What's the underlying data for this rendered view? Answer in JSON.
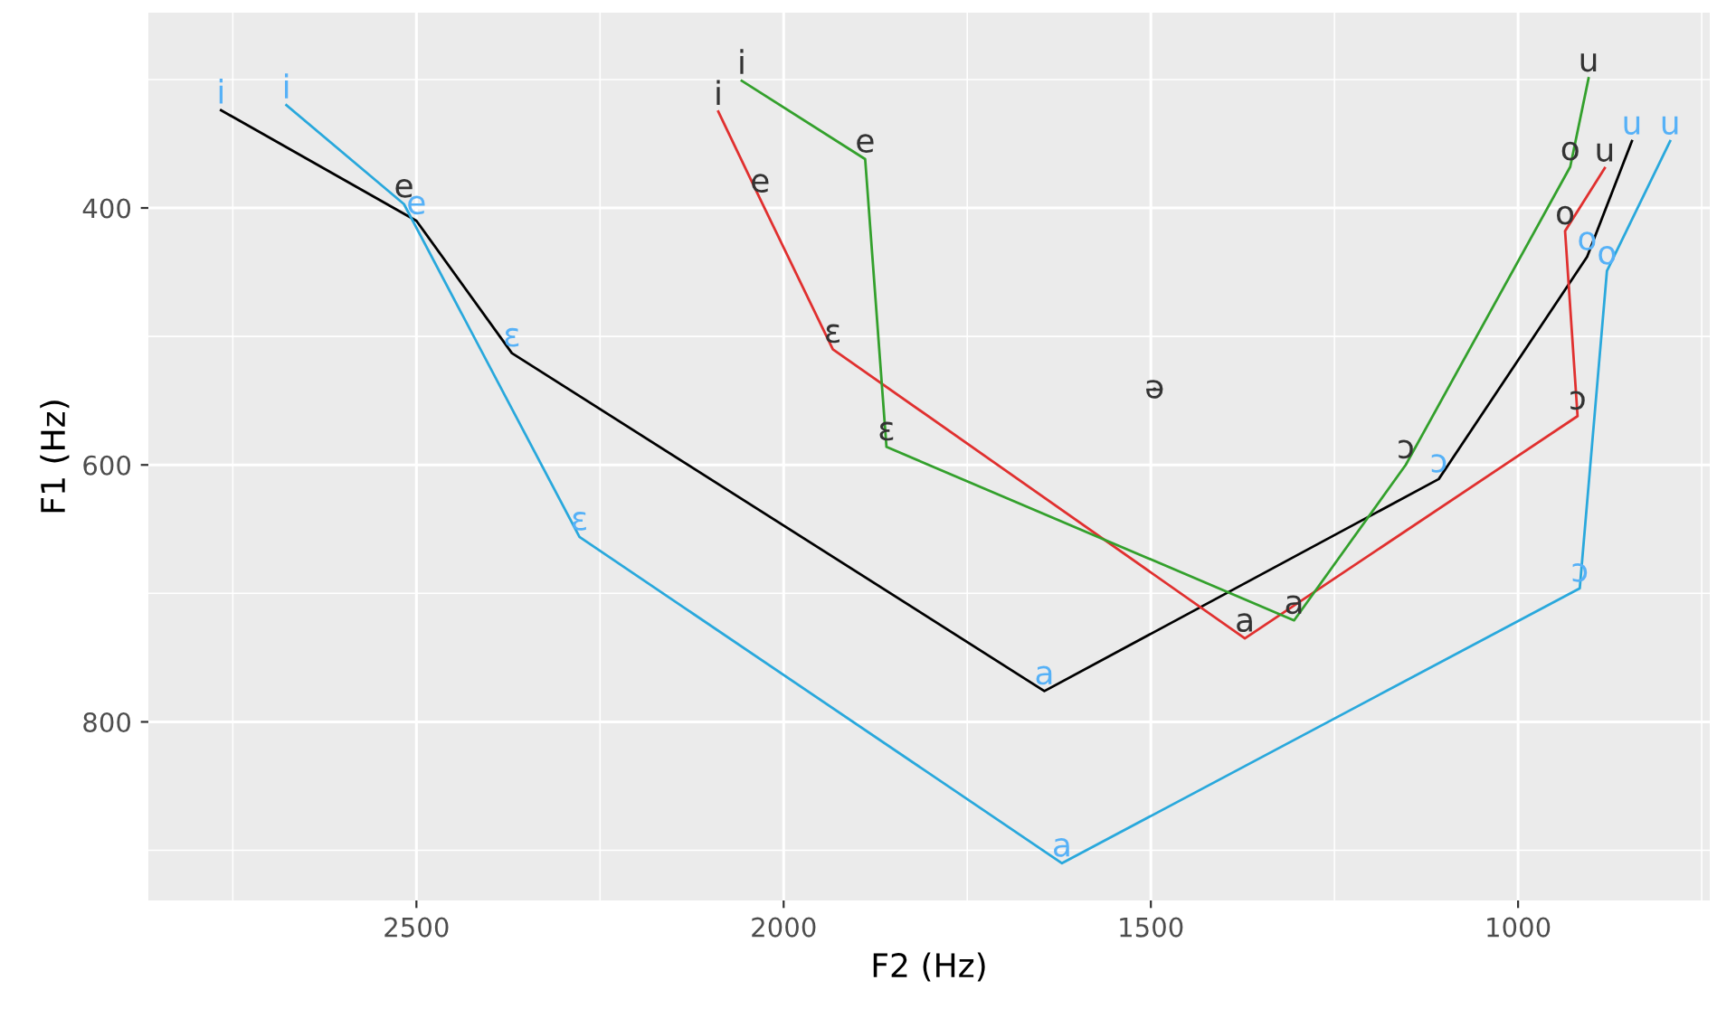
{
  "chart_data": {
    "type": "line",
    "xlabel": "F2 (Hz)",
    "ylabel": "F1 (Hz)",
    "xlim": [
      2865,
      739
    ],
    "ylim": [
      939,
      248
    ],
    "xticks": [
      {
        "value": 2750,
        "label": null
      },
      2500,
      {
        "value": 2250,
        "label": null
      },
      2000,
      {
        "value": 1750,
        "label": null
      },
      1500,
      {
        "value": 1250,
        "label": null
      },
      1000,
      {
        "value": 750,
        "label": null
      }
    ],
    "yticks": [
      {
        "value": 300,
        "label": null
      },
      400,
      {
        "value": 500,
        "label": null
      },
      600,
      {
        "value": 700,
        "label": null
      },
      800,
      {
        "value": 900,
        "label": null
      }
    ],
    "grid": true,
    "marker": "none",
    "series": [
      {
        "color": "#000000",
        "x": [
          2766,
          2500,
          2370,
          1645,
          1108,
          906,
          845
        ],
        "values": [
          324,
          410,
          513,
          776,
          611,
          438,
          348
        ],
        "value_labels": [
          "i",
          "e",
          "ɛ",
          "a",
          "ɔ",
          "o",
          "u"
        ],
        "colors": [
          "#56B1F7",
          "#56B1F7",
          "#56B1F7",
          "#56B1F7",
          "#56B1F7",
          "#56B1F7",
          "#56B1F7"
        ]
      },
      {
        "color": "#29A8DC",
        "x": [
          2677,
          2517,
          2278,
          1621,
          916,
          879,
          793
        ],
        "values": [
          320,
          397,
          656,
          910,
          696,
          449,
          348
        ],
        "value_labels": [
          "i",
          "e",
          "ɛ",
          "a",
          "ɔ",
          "o",
          "u"
        ],
        "colors": [
          "#56B1F7",
          "#333333",
          "#56B1F7",
          "#56B1F7",
          "#56B1F7",
          "#56B1F7",
          "#56B1F7"
        ]
      },
      {
        "color": "#E0302F",
        "x": [
          2089,
          2032,
          1933,
          1372,
          919,
          936,
          882
        ],
        "values": [
          325,
          393,
          510,
          735,
          562,
          418,
          369
        ],
        "value_labels": [
          "i",
          "e",
          "ɛ",
          "a",
          "ɔ",
          "o",
          "u"
        ],
        "colors": [
          "#333333",
          "#333333",
          "#333333",
          "#333333",
          "#333333",
          "#333333",
          "#333333"
        ]
      },
      {
        "color": "#33A02C",
        "x": [
          2057,
          1889,
          1860,
          1305,
          1153,
          929,
          904
        ],
        "values": [
          301,
          362,
          586,
          721,
          600,
          368,
          299
        ],
        "value_labels": [
          "i",
          "e",
          "ɛ",
          "a",
          "ɔ",
          "o",
          "u"
        ],
        "colors": [
          "#333333",
          "#333333",
          "#333333",
          "#333333",
          "#333333",
          "#333333",
          "#333333"
        ]
      },
      {
        "type": "scatter",
        "marker": "none",
        "color": "#333333",
        "x": [
          1495
        ],
        "values": [
          541
        ],
        "value_labels": [
          "ə"
        ],
        "colors": [
          "#333333"
        ]
      }
    ]
  }
}
